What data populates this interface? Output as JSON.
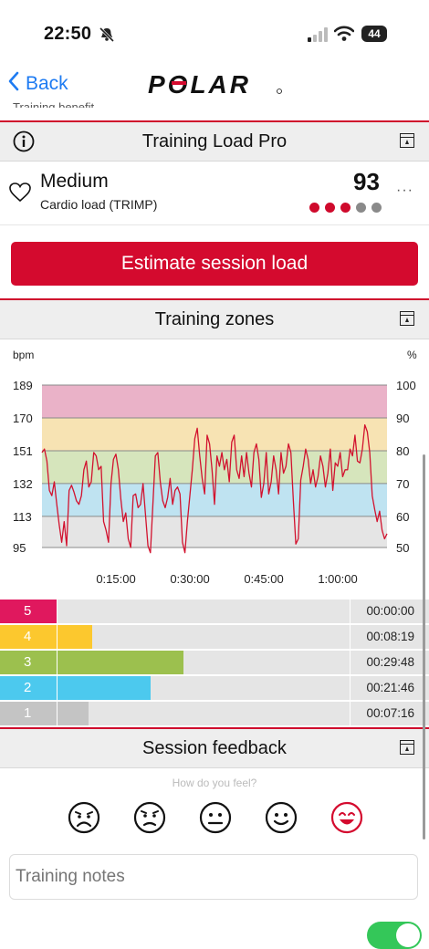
{
  "status_bar": {
    "time": "22:50",
    "battery": "44"
  },
  "nav": {
    "back_label": "Back",
    "logo_text": "POLAR",
    "partial_text": "Training benefit"
  },
  "training_load": {
    "header": "Training Load Pro",
    "level": "Medium",
    "label": "Cardio load (TRIMP)",
    "value": "93",
    "dots": [
      "#cf0a2c",
      "#cf0a2c",
      "#cf0a2c",
      "#8a8a8a",
      "#8a8a8a"
    ],
    "more": "···"
  },
  "estimate_button": "Estimate session load",
  "zones": {
    "header": "Training zones",
    "rows": [
      {
        "number": "5",
        "time": "00:00:00",
        "fraction": 0.0,
        "color": "#e0185e"
      },
      {
        "number": "4",
        "time": "00:08:19",
        "fraction": 0.12,
        "color": "#fcc82e"
      },
      {
        "number": "3",
        "time": "00:29:48",
        "fraction": 0.43,
        "color": "#9cc04e"
      },
      {
        "number": "2",
        "time": "00:21:46",
        "fraction": 0.32,
        "color": "#4cc9ee"
      },
      {
        "number": "1",
        "time": "00:07:16",
        "fraction": 0.105,
        "color": "#c4c4c4"
      }
    ]
  },
  "chart_data": {
    "type": "line",
    "ylabel": "bpm",
    "y2label": "%",
    "ylim": [
      85,
      198
    ],
    "y_ticks": [
      189,
      170,
      151,
      132,
      113,
      95
    ],
    "y2_ticks": [
      100,
      90,
      80,
      70,
      60,
      50
    ],
    "x_ticks": [
      "0:15:00",
      "0:30:00",
      "0:45:00",
      "1:00:00"
    ],
    "x_tick_minutes": [
      15,
      30,
      45,
      60
    ],
    "xlim": [
      0,
      70
    ],
    "zone_bands": [
      {
        "from": 170,
        "to": 189,
        "color": "#eab2c8"
      },
      {
        "from": 151,
        "to": 170,
        "color": "#f7e3b3"
      },
      {
        "from": 132,
        "to": 151,
        "color": "#d6e5bc"
      },
      {
        "from": 113,
        "to": 132,
        "color": "#bfe3f1"
      },
      {
        "from": 95,
        "to": 113,
        "color": "#e5e5e5"
      }
    ],
    "line_color": "#d2122e",
    "series": [
      {
        "values": [
          [
            0,
            150
          ],
          [
            0.5,
            152
          ],
          [
            1,
            145
          ],
          [
            1.5,
            128
          ],
          [
            2,
            125
          ],
          [
            2.5,
            133
          ],
          [
            3,
            120
          ],
          [
            3.5,
            108
          ],
          [
            4,
            98
          ],
          [
            4.5,
            110
          ],
          [
            5,
            96
          ],
          [
            5.5,
            128
          ],
          [
            6,
            131
          ],
          [
            6.5,
            127
          ],
          [
            7,
            122
          ],
          [
            7.5,
            120
          ],
          [
            8,
            125
          ],
          [
            8.5,
            140
          ],
          [
            9,
            145
          ],
          [
            9.5,
            130
          ],
          [
            10,
            133
          ],
          [
            10.5,
            150
          ],
          [
            11,
            148
          ],
          [
            11.5,
            140
          ],
          [
            12,
            142
          ],
          [
            12.5,
            110
          ],
          [
            13,
            105
          ],
          [
            13.5,
            98
          ],
          [
            14,
            132
          ],
          [
            14.5,
            146
          ],
          [
            15,
            149
          ],
          [
            15.5,
            140
          ],
          [
            16,
            123
          ],
          [
            16.5,
            110
          ],
          [
            17,
            115
          ],
          [
            17.5,
            100
          ],
          [
            18,
            95
          ],
          [
            18.5,
            125
          ],
          [
            19,
            126
          ],
          [
            19.5,
            118
          ],
          [
            20,
            120
          ],
          [
            20.5,
            132
          ],
          [
            21,
            114
          ],
          [
            21.5,
            96
          ],
          [
            22,
            92
          ],
          [
            22.5,
            120
          ],
          [
            23,
            148
          ],
          [
            23.5,
            150
          ],
          [
            24,
            133
          ],
          [
            24.5,
            122
          ],
          [
            25,
            118
          ],
          [
            25.5,
            124
          ],
          [
            26,
            135
          ],
          [
            26.5,
            120
          ],
          [
            27,
            128
          ],
          [
            27.5,
            130
          ],
          [
            28,
            126
          ],
          [
            28.5,
            98
          ],
          [
            29,
            92
          ],
          [
            29.5,
            110
          ],
          [
            30,
            125
          ],
          [
            30.5,
            140
          ],
          [
            31,
            158
          ],
          [
            31.5,
            164
          ],
          [
            32,
            148
          ],
          [
            32.5,
            135
          ],
          [
            33,
            126
          ],
          [
            33.5,
            160
          ],
          [
            34,
            155
          ],
          [
            34.5,
            140
          ],
          [
            35,
            120
          ],
          [
            35.5,
            148
          ],
          [
            36,
            142
          ],
          [
            36.5,
            150
          ],
          [
            37,
            140
          ],
          [
            37.5,
            146
          ],
          [
            38,
            133
          ],
          [
            38.5,
            156
          ],
          [
            39,
            160
          ],
          [
            39.5,
            140
          ],
          [
            40,
            135
          ],
          [
            40.5,
            148
          ],
          [
            41,
            136
          ],
          [
            41.5,
            150
          ],
          [
            42,
            138
          ],
          [
            42.5,
            130
          ],
          [
            43,
            150
          ],
          [
            43.5,
            155
          ],
          [
            44,
            146
          ],
          [
            44.5,
            124
          ],
          [
            45,
            132
          ],
          [
            45.5,
            150
          ],
          [
            46,
            126
          ],
          [
            46.5,
            133
          ],
          [
            47,
            148
          ],
          [
            47.5,
            140
          ],
          [
            48,
            126
          ],
          [
            48.5,
            150
          ],
          [
            49,
            138
          ],
          [
            49.5,
            142
          ],
          [
            50,
            155
          ],
          [
            50.5,
            150
          ],
          [
            51,
            122
          ],
          [
            51.5,
            97
          ],
          [
            52,
            100
          ],
          [
            52.5,
            134
          ],
          [
            53,
            142
          ],
          [
            53.5,
            152
          ],
          [
            54,
            146
          ],
          [
            54.5,
            132
          ],
          [
            55,
            140
          ],
          [
            55.5,
            130
          ],
          [
            56,
            136
          ],
          [
            56.5,
            148
          ],
          [
            57,
            142
          ],
          [
            57.5,
            130
          ],
          [
            58,
            138
          ],
          [
            58.5,
            152
          ],
          [
            59,
            128
          ],
          [
            59.5,
            144
          ],
          [
            60,
            142
          ],
          [
            60.5,
            150
          ],
          [
            61,
            136
          ],
          [
            61.5,
            140
          ],
          [
            62,
            140
          ],
          [
            62.5,
            152
          ],
          [
            63,
            148
          ],
          [
            63.5,
            160
          ],
          [
            64,
            145
          ],
          [
            64.5,
            144
          ],
          [
            65,
            152
          ],
          [
            65.5,
            166
          ],
          [
            66,
            162
          ],
          [
            66.5,
            150
          ],
          [
            67,
            125
          ],
          [
            67.5,
            117
          ],
          [
            68,
            110
          ],
          [
            68.5,
            116
          ],
          [
            69,
            105
          ],
          [
            69.5,
            100
          ],
          [
            70,
            103
          ]
        ]
      }
    ]
  },
  "feedback": {
    "header": "Session feedback",
    "prompt": "How do you feel?",
    "notes_placeholder": "Training notes"
  }
}
